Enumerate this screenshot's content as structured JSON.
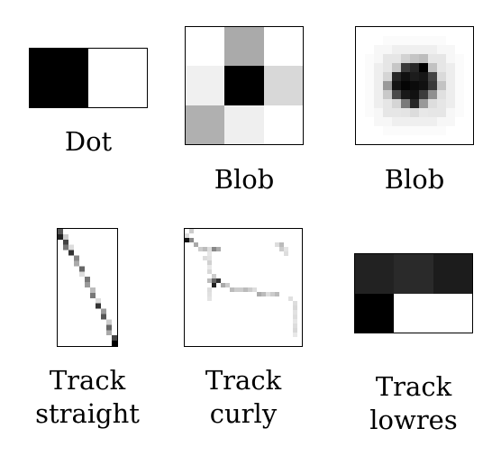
{
  "panels": [
    {
      "id": "dot",
      "label_lines": [
        "Dot"
      ],
      "cols": 2,
      "rows": 1,
      "cells": [
        "#000000",
        "#ffffff"
      ]
    },
    {
      "id": "blob-small",
      "label_lines": [
        "Blob"
      ],
      "cols": 3,
      "rows": 3,
      "cells": [
        "#ffffff",
        "#aaaaaa",
        "#ffffff",
        "#f0f0f0",
        "#000000",
        "#d8d8d8",
        "#b0b0b0",
        "#efefef",
        "#ffffff"
      ]
    },
    {
      "id": "blob-large",
      "label_lines": [
        "Blob"
      ]
    },
    {
      "id": "track-straight",
      "label_lines": [
        "Track",
        "straight"
      ]
    },
    {
      "id": "track-curly",
      "label_lines": [
        "Track",
        "curly"
      ]
    },
    {
      "id": "track-lowres",
      "label_lines": [
        "Track",
        "lowres"
      ],
      "cols": 3,
      "rows": 2,
      "cells": [
        "#222222",
        "#2a2a2a",
        "#1c1c1c",
        "#000000",
        "#ffffff",
        "#ffffff"
      ]
    }
  ]
}
